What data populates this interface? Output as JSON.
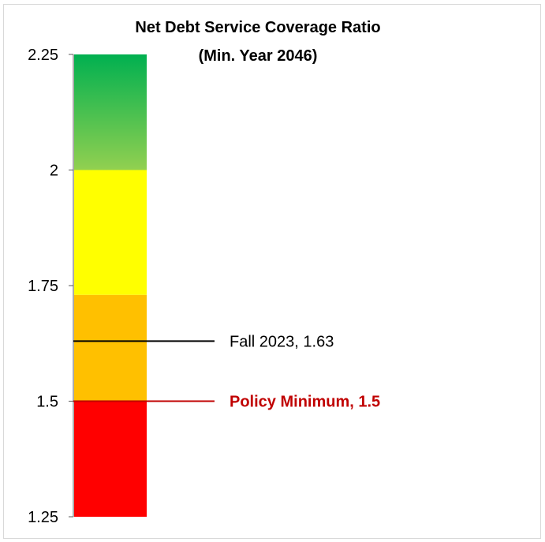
{
  "chart_data": {
    "type": "gauge-bar",
    "title": [
      "Net Debt Service Coverage Ratio",
      "(Min. Year 2046)"
    ],
    "ylim": [
      1.25,
      2.25
    ],
    "yticks": [
      {
        "value": 2.25,
        "label": "2.25"
      },
      {
        "value": 2.0,
        "label": "2"
      },
      {
        "value": 1.75,
        "label": "1.75"
      },
      {
        "value": 1.5,
        "label": "1.5"
      },
      {
        "value": 1.25,
        "label": "1.25"
      }
    ],
    "bands": [
      {
        "from": 1.25,
        "to": 1.5,
        "color": "#ff0000"
      },
      {
        "from": 1.5,
        "to": 1.73,
        "color": "#ffc000"
      },
      {
        "from": 1.73,
        "to": 2.0,
        "color": "#ffff00"
      },
      {
        "from": 2.0,
        "to": 2.25,
        "color_bottom": "#92d050",
        "color_top": "#00b050"
      }
    ],
    "markers": [
      {
        "value": 1.63,
        "label": "Fall 2023, 1.63",
        "color": "#000000",
        "bold": false
      },
      {
        "value": 1.5,
        "label": "Policy Minimum, 1.5",
        "color": "#c00000",
        "bold": true
      }
    ]
  }
}
